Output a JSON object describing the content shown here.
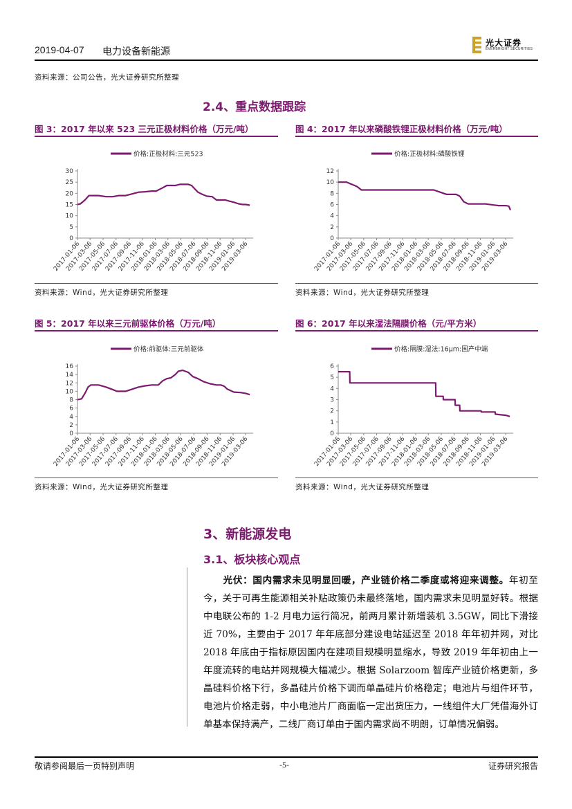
{
  "header": {
    "date": "2019-04-07",
    "sector": "电力设备新能源",
    "logo_cn": "光大证券",
    "logo_en": "EVERBRIGHT SECURITIES"
  },
  "top_source": "资料来源：公司公告，光大证券研究所整理",
  "section_2_4": "2.4、重点数据跟踪",
  "figures": [
    {
      "title": "图 3：2017 年以来 523 三元正极材料价格（万元/吨）",
      "source": "资料来源：Wind，光大证券研究所整理"
    },
    {
      "title": "图 4：2017 年以来磷酸铁锂正极材料价格（万元/吨）",
      "source": "资料来源：Wind，光大证券研究所整理"
    },
    {
      "title": "图 5：2017 年以来三元前驱体价格（万元/吨）",
      "source": "资料来源：Wind，光大证券研究所整理"
    },
    {
      "title": "图 6：2017 年以来湿法隔膜价格（元/平方米）",
      "source": "资料来源：Wind，光大证券研究所整理"
    }
  ],
  "chart_data": [
    {
      "type": "line",
      "legend": "价格:正极材料:三元523",
      "color": "#7b1a6e",
      "ylim": [
        0,
        30
      ],
      "yticks": [
        0,
        5,
        10,
        15,
        20,
        25,
        30
      ],
      "xticks": [
        "2017-01-06",
        "2017-03-06",
        "2017-05-06",
        "2017-07-06",
        "2017-09-06",
        "2017-11-06",
        "2018-01-06",
        "2018-03-06",
        "2018-05-06",
        "2018-07-06",
        "2018-09-06",
        "2018-11-06",
        "2019-01-06",
        "2019-03-06"
      ],
      "x": [
        "2017-01-06",
        "2017-01-20",
        "2017-02-10",
        "2017-03-01",
        "2017-03-20",
        "2017-04-15",
        "2017-05-20",
        "2017-06-20",
        "2017-07-20",
        "2017-08-20",
        "2017-09-10",
        "2017-09-30",
        "2017-10-20",
        "2017-11-20",
        "2017-12-20",
        "2018-01-10",
        "2018-02-10",
        "2018-03-01",
        "2018-03-20",
        "2018-04-10",
        "2018-05-01",
        "2018-05-20",
        "2018-06-10",
        "2018-06-25",
        "2018-07-10",
        "2018-07-25",
        "2018-08-15",
        "2018-09-05",
        "2018-09-30",
        "2018-10-20",
        "2018-11-10",
        "2018-12-01",
        "2018-12-20",
        "2019-01-10",
        "2019-02-01",
        "2019-02-20",
        "2019-03-06",
        "2019-03-25"
      ],
      "y": [
        15,
        15.3,
        17,
        19,
        19,
        19,
        18.5,
        18.5,
        19,
        19,
        19.5,
        20,
        20.5,
        20.7,
        21,
        21,
        22.5,
        23.5,
        23.5,
        23.5,
        24,
        24,
        24,
        23.5,
        22,
        20.5,
        19.5,
        18.7,
        18.5,
        17,
        17,
        17,
        16.5,
        16,
        15.3,
        15,
        15,
        14.7
      ]
    },
    {
      "type": "line",
      "legend": "价格:正极材料:磷酸铁锂",
      "color": "#7b1a6e",
      "ylim": [
        0,
        12
      ],
      "yticks": [
        0,
        2,
        4,
        6,
        8,
        10,
        12
      ],
      "xticks": [
        "2017-01-06",
        "2017-03-06",
        "2017-05-06",
        "2017-07-06",
        "2017-09-06",
        "2017-11-06",
        "2018-01-06",
        "2018-03-06",
        "2018-05-06",
        "2018-07-06",
        "2018-09-06",
        "2018-11-06",
        "2019-01-06",
        "2019-03-06"
      ],
      "x": [
        "2017-01-06",
        "2017-02-15",
        "2017-03-05",
        "2017-04-05",
        "2017-04-25",
        "2017-06-01",
        "2017-08-01",
        "2017-10-01",
        "2017-12-01",
        "2018-02-01",
        "2018-04-01",
        "2018-05-01",
        "2018-06-01",
        "2018-07-15",
        "2018-08-01",
        "2018-08-20",
        "2018-09-10",
        "2018-10-15",
        "2018-12-01",
        "2019-01-10",
        "2019-02-01",
        "2019-03-06",
        "2019-03-20",
        "2019-03-28"
      ],
      "y": [
        10,
        10,
        9.7,
        9.2,
        8.6,
        8.6,
        8.6,
        8.6,
        8.6,
        8.6,
        8.6,
        8.2,
        7.8,
        7.8,
        7.5,
        6.5,
        6.1,
        6.1,
        6.1,
        5.9,
        5.8,
        5.8,
        5.7,
        5
      ]
    },
    {
      "type": "line",
      "legend": "价格:前驱体:三元前驱体",
      "color": "#7b1a6e",
      "ylim": [
        0,
        16
      ],
      "yticks": [
        0,
        2,
        4,
        6,
        8,
        10,
        12,
        14,
        16
      ],
      "xticks": [
        "2017-01-06",
        "2017-03-06",
        "2017-05-06",
        "2017-07-06",
        "2017-09-06",
        "2017-11-06",
        "2018-01-06",
        "2018-03-06",
        "2018-05-06",
        "2018-07-06",
        "2018-09-06",
        "2018-11-06",
        "2019-01-06",
        "2019-03-06"
      ],
      "x": [
        "2017-01-06",
        "2017-01-25",
        "2017-02-10",
        "2017-02-25",
        "2017-03-10",
        "2017-04-15",
        "2017-05-20",
        "2017-06-15",
        "2017-07-10",
        "2017-08-20",
        "2017-09-20",
        "2017-10-20",
        "2017-11-20",
        "2017-12-20",
        "2018-01-20",
        "2018-02-10",
        "2018-03-01",
        "2018-03-20",
        "2018-04-10",
        "2018-04-25",
        "2018-05-15",
        "2018-06-10",
        "2018-07-01",
        "2018-07-25",
        "2018-08-20",
        "2018-09-20",
        "2018-10-20",
        "2018-11-10",
        "2018-11-25",
        "2018-12-10",
        "2019-01-10",
        "2019-02-10",
        "2019-03-06",
        "2019-03-25"
      ],
      "y": [
        8,
        8.2,
        9.5,
        11,
        11.5,
        11.5,
        11,
        10.5,
        10,
        10,
        10.5,
        11,
        11.3,
        11.5,
        11.5,
        12.5,
        13,
        13.2,
        14,
        14.8,
        15,
        14.5,
        13.5,
        13,
        12.3,
        11.8,
        11.5,
        11.5,
        11.2,
        10.5,
        9.8,
        9.7,
        9.5,
        9.2
      ]
    },
    {
      "type": "line",
      "legend": "价格:隔膜:湿法:16μm:国产中端",
      "color": "#7b1a6e",
      "ylim": [
        0,
        6
      ],
      "yticks": [
        0,
        1,
        2,
        3,
        4,
        5,
        6
      ],
      "xticks": [
        "2017-01-06",
        "2017-03-06",
        "2017-05-06",
        "2017-07-06",
        "2017-09-06",
        "2017-11-06",
        "2018-01-06",
        "2018-03-06",
        "2018-05-06",
        "2018-07-06",
        "2018-09-06",
        "2018-11-06",
        "2019-01-06",
        "2019-03-06"
      ],
      "x": [
        "2017-01-06",
        "2017-03-01",
        "2017-03-02",
        "2017-07-01",
        "2017-12-01",
        "2018-04-10",
        "2018-04-11",
        "2018-05-15",
        "2018-05-16",
        "2018-07-10",
        "2018-07-11",
        "2018-08-01",
        "2018-08-02",
        "2018-11-10",
        "2018-11-11",
        "2019-01-15",
        "2019-01-16",
        "2019-03-06",
        "2019-03-25"
      ],
      "y": [
        5.5,
        5.5,
        4.5,
        4.5,
        4.5,
        4.5,
        3.3,
        3.3,
        3.0,
        3.0,
        2.5,
        2.5,
        2.0,
        2.0,
        1.9,
        1.9,
        1.7,
        1.6,
        1.5
      ]
    }
  ],
  "section_3": "3、新能源发电",
  "section_3_1": "3.1、板块核心观点",
  "paragraph": {
    "lead": "光伏：国内需求未见明显回暖，产业链价格二季度或将迎来调整。",
    "body": "年初至今，关于可再生能源相关补贴政策仍未最终落地，国内需求未见明显好转。根据中电联公布的 1-2 月电力运行简况，前两月累计新增装机 3.5GW，同比下滑接近 70%，主要由于 2017 年年底部分建设电站延迟至 2018 年年初并网，对比 2018 年底由于指标原因国内在建项目规模明显缩水，导致 2019 年年初由上一年度流转的电站并网规模大幅减少。根据 Solarzoom 智库产业链价格更新，多晶硅料价格下行，多晶硅片价格下调而单晶硅片价格稳定；电池片与组件环节，电池片价格走弱，中小电池片厂商面临一定出货压力，一线组件大厂凭借海外订单基本保持满产，二线厂商订单由于国内需求尚不明朗，订单情况偏弱。"
  },
  "footer": {
    "left": "敬请参阅最后一页特别声明",
    "center": "-5-",
    "right": "证券研究报告"
  }
}
